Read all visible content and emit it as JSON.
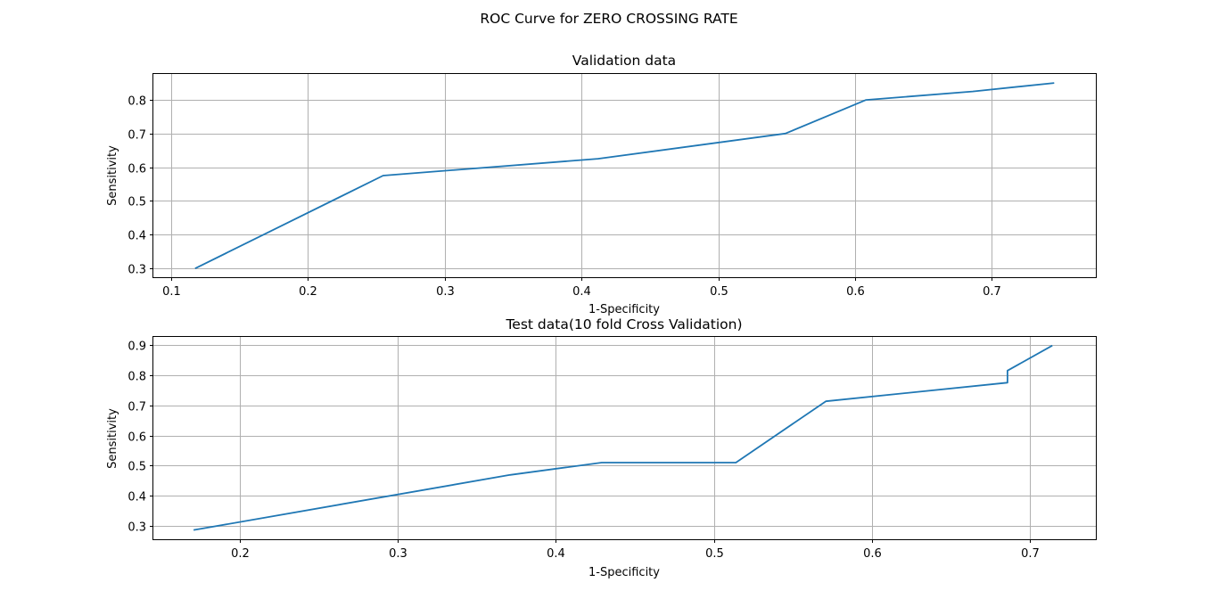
{
  "figure_title": "ROC Curve for ZERO CROSSING RATE",
  "chart_data": [
    {
      "type": "line",
      "title": "Validation data",
      "xlabel": "1-Specificity",
      "ylabel": "Sensitivity",
      "xlim": [
        0.087,
        0.776
      ],
      "ylim": [
        0.273,
        0.877
      ],
      "xticks": [
        0.1,
        0.2,
        0.3,
        0.4,
        0.5,
        0.6,
        0.7
      ],
      "yticks": [
        0.3,
        0.4,
        0.5,
        0.6,
        0.7,
        0.8
      ],
      "xtick_labels": [
        "0.1",
        "0.2",
        "0.3",
        "0.4",
        "0.5",
        "0.6",
        "0.7"
      ],
      "ytick_labels": [
        "0.3",
        "0.4",
        "0.5",
        "0.6",
        "0.7",
        "0.8"
      ],
      "grid": true,
      "series": [
        {
          "color": "#1f77b4",
          "x": [
            0.118,
            0.255,
            0.412,
            0.549,
            0.608,
            0.686,
            0.745
          ],
          "y": [
            0.3,
            0.575,
            0.625,
            0.7,
            0.8,
            0.825,
            0.85
          ]
        }
      ]
    },
    {
      "type": "line",
      "title": "Test data(10 fold Cross Validation)",
      "xlabel": "1-Specificity",
      "ylabel": "Sensitivity",
      "xlim": [
        0.145,
        0.742
      ],
      "ylim": [
        0.255,
        0.928
      ],
      "xticks": [
        0.2,
        0.3,
        0.4,
        0.5,
        0.6,
        0.7
      ],
      "yticks": [
        0.3,
        0.4,
        0.5,
        0.6,
        0.7,
        0.8,
        0.9
      ],
      "xtick_labels": [
        "0.2",
        "0.3",
        "0.4",
        "0.5",
        "0.6",
        "0.7"
      ],
      "ytick_labels": [
        "0.3",
        "0.4",
        "0.5",
        "0.6",
        "0.7",
        "0.8",
        "0.9"
      ],
      "grid": true,
      "series": [
        {
          "color": "#1f77b4",
          "x": [
            0.171,
            0.371,
            0.429,
            0.514,
            0.571,
            0.686,
            0.686,
            0.714
          ],
          "y": [
            0.286,
            0.469,
            0.51,
            0.51,
            0.714,
            0.776,
            0.816,
            0.898
          ]
        }
      ]
    }
  ]
}
